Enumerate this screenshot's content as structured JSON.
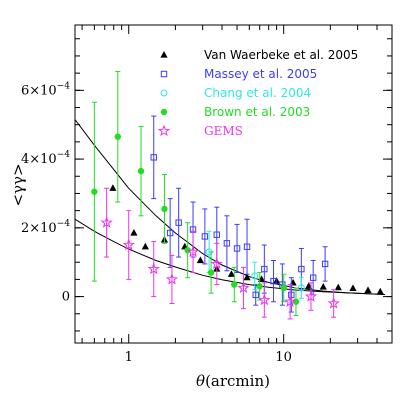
{
  "chart_data": {
    "type": "scatter",
    "xscale": "log",
    "xlim": [
      0.45,
      50
    ],
    "ylim": [
      -0.000135,
      0.00079
    ],
    "xlabel_sym": "θ",
    "xlabel_unit": "(arcmin)",
    "ylabel": "<γγ>",
    "x_ticks": [
      {
        "value": 1,
        "label": "1"
      },
      {
        "value": 10,
        "label": "10"
      }
    ],
    "y_ticks": [
      {
        "value": 0,
        "mant": "0",
        "exp": ""
      },
      {
        "value": 0.0002,
        "mant": "2×10",
        "exp": "−4"
      },
      {
        "value": 0.0004,
        "mant": "4×10",
        "exp": "−4"
      },
      {
        "value": 0.0006,
        "mant": "6×10",
        "exp": "−4"
      }
    ],
    "grid": false,
    "legend_position": "top-right",
    "series": [
      {
        "name": "Van Waerbeke et al. 2005",
        "color": "#000000",
        "marker": "triangle-filled",
        "points": [
          {
            "x": 0.79,
            "y": 0.000315,
            "err": 0
          },
          {
            "x": 1.08,
            "y": 0.000185,
            "err": 0
          },
          {
            "x": 1.28,
            "y": 0.000145,
            "err": 0
          },
          {
            "x": 1.7,
            "y": 0.000165,
            "err": 0
          },
          {
            "x": 2.3,
            "y": 0.000145,
            "err": 0
          },
          {
            "x": 2.9,
            "y": 0.000105,
            "err": 0
          },
          {
            "x": 3.7,
            "y": 8e-05,
            "err": 0
          },
          {
            "x": 4.6,
            "y": 6.5e-05,
            "err": 0
          },
          {
            "x": 5.8,
            "y": 5.5e-05,
            "err": 0
          },
          {
            "x": 7.2,
            "y": 5e-05,
            "err": 0
          },
          {
            "x": 9.0,
            "y": 4.5e-05,
            "err": 0
          },
          {
            "x": 11.5,
            "y": 4e-05,
            "err": 0
          },
          {
            "x": 14.5,
            "y": 3e-05,
            "err": 0
          },
          {
            "x": 18.0,
            "y": 2.8e-05,
            "err": 0
          },
          {
            "x": 22.5,
            "y": 2.6e-05,
            "err": 0
          },
          {
            "x": 28.0,
            "y": 2.4e-05,
            "err": 0
          },
          {
            "x": 35.0,
            "y": 1.8e-05,
            "err": 0
          },
          {
            "x": 42.0,
            "y": 1.4e-05,
            "err": 0
          }
        ]
      },
      {
        "name": "Massey et al. 2005",
        "color": "#3c3cff",
        "marker": "square-open",
        "points": [
          {
            "x": 1.45,
            "y": 0.000405,
            "err": 0.00012
          },
          {
            "x": 1.85,
            "y": 0.000185,
            "err": 0.0001
          },
          {
            "x": 2.1,
            "y": 0.000215,
            "err": 0.0001
          },
          {
            "x": 2.6,
            "y": 0.000195,
            "err": 8e-05
          },
          {
            "x": 3.1,
            "y": 0.000175,
            "err": 8e-05
          },
          {
            "x": 3.7,
            "y": 0.00018,
            "err": 8e-05
          },
          {
            "x": 4.3,
            "y": 0.000155,
            "err": 8e-05
          },
          {
            "x": 5.0,
            "y": 0.00014,
            "err": 7e-05
          },
          {
            "x": 5.8,
            "y": 0.000145,
            "err": 8e-05
          },
          {
            "x": 6.6,
            "y": 5e-06,
            "err": 3e-05
          },
          {
            "x": 7.5,
            "y": 8e-05,
            "err": 7e-05
          },
          {
            "x": 8.6,
            "y": 4.5e-05,
            "err": 6e-05
          },
          {
            "x": 9.8,
            "y": 3.5e-05,
            "err": 6e-05
          },
          {
            "x": 11.2,
            "y": 5e-06,
            "err": 5e-05
          },
          {
            "x": 13.0,
            "y": 8e-05,
            "err": 6e-05
          },
          {
            "x": 15.5,
            "y": 5.5e-05,
            "err": 5e-05
          },
          {
            "x": 18.5,
            "y": 9.5e-05,
            "err": 5e-05
          }
        ]
      },
      {
        "name": "Chang et al. 2004",
        "color": "#33e6e6",
        "marker": "circle-open",
        "points": [
          {
            "x": 3.3,
            "y": 0.00013,
            "err": 6e-05
          },
          {
            "x": 6.5,
            "y": 6e-05,
            "err": 4e-05
          },
          {
            "x": 13.0,
            "y": 2.5e-05,
            "err": 3e-05
          }
        ]
      },
      {
        "name": "Brown et al. 2003",
        "color": "#22dd22",
        "marker": "circle-filled",
        "points": [
          {
            "x": 0.6,
            "y": 0.000305,
            "err": 0.00026
          },
          {
            "x": 0.85,
            "y": 0.000465,
            "err": 0.00019
          },
          {
            "x": 1.2,
            "y": 0.000365,
            "err": 0.00013
          },
          {
            "x": 1.7,
            "y": 0.000255,
            "err": 0.0001
          },
          {
            "x": 2.4,
            "y": 0.000135,
            "err": 8e-05
          },
          {
            "x": 3.4,
            "y": 7e-05,
            "err": 6e-05
          },
          {
            "x": 4.8,
            "y": 3.5e-05,
            "err": 5e-05
          },
          {
            "x": 7.0,
            "y": 3e-05,
            "err": 4e-05
          },
          {
            "x": 10.0,
            "y": 2.5e-05,
            "err": 4e-05
          },
          {
            "x": 12.0,
            "y": -1.5e-05,
            "err": 4e-05
          }
        ]
      },
      {
        "name": "GEMS",
        "color": "#ee33ee",
        "marker": "star-open",
        "points": [
          {
            "x": 0.72,
            "y": 0.000215,
            "err": 0.0001
          },
          {
            "x": 1.0,
            "y": 0.00015,
            "err": 0.0001
          },
          {
            "x": 1.45,
            "y": 8e-05,
            "err": 8e-05
          },
          {
            "x": 1.9,
            "y": 5e-05,
            "err": 7e-05
          },
          {
            "x": 2.6,
            "y": 0.00013,
            "err": 6e-05
          },
          {
            "x": 3.7,
            "y": 9.5e-05,
            "err": 6e-05
          },
          {
            "x": 5.5,
            "y": 2.5e-05,
            "err": 6e-05
          },
          {
            "x": 7.5,
            "y": -1e-05,
            "err": 5e-05
          },
          {
            "x": 11.0,
            "y": -1.5e-05,
            "err": 5e-05
          },
          {
            "x": 15.0,
            "y": 0.0,
            "err": 4e-05
          },
          {
            "x": 21.0,
            "y": -2e-05,
            "err": 4e-05
          }
        ]
      }
    ],
    "model_curves": [
      {
        "color": "#000000",
        "points": [
          [
            0.45,
            0.000515
          ],
          [
            0.6,
            0.00044
          ],
          [
            0.8,
            0.00037
          ],
          [
            1,
            0.000315
          ],
          [
            1.5,
            0.000235
          ],
          [
            2,
            0.000185
          ],
          [
            3,
            0.000125
          ],
          [
            4,
            9.2e-05
          ],
          [
            6,
            5.8e-05
          ],
          [
            8,
            4.1e-05
          ],
          [
            12,
            2.5e-05
          ],
          [
            18,
            1.6e-05
          ],
          [
            25,
            1.1e-05
          ],
          [
            35,
            8e-06
          ],
          [
            45,
            6e-06
          ]
        ]
      },
      {
        "color": "#000000",
        "points": [
          [
            0.45,
            0.000225
          ],
          [
            0.6,
            0.00019
          ],
          [
            0.8,
            0.00016
          ],
          [
            1,
            0.000138
          ],
          [
            1.5,
            0.000105
          ],
          [
            2,
            8.6e-05
          ],
          [
            3,
            6.2e-05
          ],
          [
            4,
            4.9e-05
          ],
          [
            6,
            3.5e-05
          ],
          [
            8,
            2.7e-05
          ],
          [
            12,
            1.9e-05
          ],
          [
            18,
            1.4e-05
          ],
          [
            25,
            1.1e-05
          ],
          [
            35,
            8e-06
          ],
          [
            45,
            6e-06
          ]
        ]
      }
    ]
  }
}
